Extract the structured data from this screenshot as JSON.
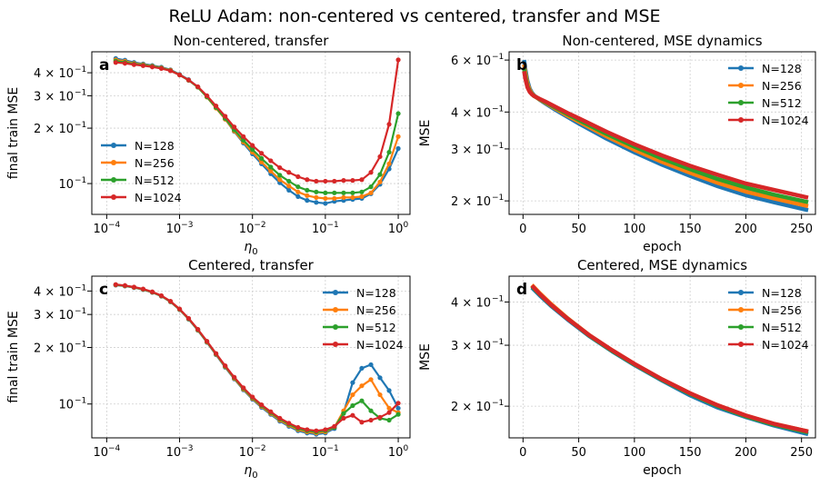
{
  "figure": {
    "title": "ReLU Adam: non-centered vs centered, transfer and MSE"
  },
  "colors": {
    "N=128": "#1f77b4",
    "N=256": "#ff7f0e",
    "N=512": "#2ca02c",
    "N=1024": "#d62728"
  },
  "chart_data": [
    {
      "panel": "a",
      "type": "line",
      "title": "Non-centered, transfer",
      "xlabel": "η0",
      "ylabel": "final train MSE",
      "xscale": "log",
      "yscale": "log",
      "xlim": [
        6.25e-05,
        1.45
      ],
      "ylim": [
        0.068,
        0.52
      ],
      "xticks": [
        {
          "v": 0.0001,
          "b": "10",
          "e": "−4"
        },
        {
          "v": 0.001,
          "b": "10",
          "e": "−3"
        },
        {
          "v": 0.01,
          "b": "10",
          "e": "−2"
        },
        {
          "v": 0.1,
          "b": "10",
          "e": "−1"
        },
        {
          "v": 1,
          "b": "10",
          "e": "0"
        }
      ],
      "yticks": [
        {
          "v": 0.1,
          "b": "10",
          "e": "−1"
        },
        {
          "v": 0.2,
          "b": "2 × 10",
          "e": "−1"
        },
        {
          "v": 0.3,
          "b": "3 × 10",
          "e": "−1"
        },
        {
          "v": 0.4,
          "b": "4 × 10",
          "e": "−1"
        }
      ],
      "grid": true,
      "markers": true,
      "legend": "center-left",
      "x": [
        0.000133,
        0.000178,
        0.000237,
        0.000316,
        0.000422,
        0.000562,
        0.00075,
        0.001,
        0.00133,
        0.00178,
        0.00237,
        0.00316,
        0.00422,
        0.00562,
        0.0075,
        0.01,
        0.0133,
        0.0178,
        0.0237,
        0.0316,
        0.0422,
        0.0562,
        0.075,
        0.1,
        0.133,
        0.178,
        0.237,
        0.316,
        0.422,
        0.562,
        0.75,
        1.0
      ],
      "series": [
        {
          "name": "N=128",
          "values": [
            0.478,
            0.468,
            0.455,
            0.447,
            0.438,
            0.429,
            0.415,
            0.392,
            0.367,
            0.335,
            0.296,
            0.258,
            0.224,
            0.192,
            0.166,
            0.145,
            0.128,
            0.113,
            0.101,
            0.092,
            0.085,
            0.081,
            0.079,
            0.078,
            0.08,
            0.081,
            0.082,
            0.083,
            0.088,
            0.099,
            0.12,
            0.155
          ]
        },
        {
          "name": "N=256",
          "values": [
            0.47,
            0.462,
            0.45,
            0.443,
            0.435,
            0.426,
            0.413,
            0.39,
            0.365,
            0.334,
            0.295,
            0.257,
            0.224,
            0.193,
            0.168,
            0.148,
            0.131,
            0.117,
            0.105,
            0.097,
            0.09,
            0.086,
            0.084,
            0.083,
            0.083,
            0.084,
            0.084,
            0.085,
            0.089,
            0.102,
            0.128,
            0.18
          ]
        },
        {
          "name": "N=512",
          "values": [
            0.463,
            0.456,
            0.447,
            0.44,
            0.433,
            0.424,
            0.411,
            0.389,
            0.364,
            0.334,
            0.296,
            0.259,
            0.226,
            0.196,
            0.172,
            0.153,
            0.137,
            0.123,
            0.111,
            0.103,
            0.096,
            0.092,
            0.09,
            0.089,
            0.089,
            0.089,
            0.089,
            0.09,
            0.096,
            0.112,
            0.148,
            0.24
          ]
        },
        {
          "name": "N=1024",
          "values": [
            0.455,
            0.45,
            0.443,
            0.437,
            0.43,
            0.422,
            0.41,
            0.389,
            0.365,
            0.336,
            0.3,
            0.264,
            0.232,
            0.203,
            0.18,
            0.161,
            0.146,
            0.133,
            0.122,
            0.115,
            0.109,
            0.105,
            0.103,
            0.103,
            0.103,
            0.104,
            0.104,
            0.105,
            0.115,
            0.14,
            0.21,
            0.47
          ]
        }
      ]
    },
    {
      "panel": "b",
      "type": "line",
      "title": "Non-centered, MSE dynamics",
      "xlabel": "epoch",
      "ylabel": "MSE",
      "xscale": "linear",
      "yscale": "log",
      "xlim": [
        -12.5,
        262.5
      ],
      "ylim": [
        0.18,
        0.64
      ],
      "xticks": [
        {
          "v": 0,
          "b": "0",
          "e": ""
        },
        {
          "v": 50,
          "b": "50",
          "e": ""
        },
        {
          "v": 100,
          "b": "100",
          "e": ""
        },
        {
          "v": 150,
          "b": "150",
          "e": ""
        },
        {
          "v": 200,
          "b": "200",
          "e": ""
        },
        {
          "v": 250,
          "b": "250",
          "e": ""
        }
      ],
      "yticks": [
        {
          "v": 0.2,
          "b": "2 × 10",
          "e": "−1"
        },
        {
          "v": 0.3,
          "b": "3 × 10",
          "e": "−1"
        },
        {
          "v": 0.4,
          "b": "4 × 10",
          "e": "−1"
        },
        {
          "v": 0.6,
          "b": "6 × 10",
          "e": "−1"
        }
      ],
      "grid": true,
      "markers": false,
      "linewidth": "thick",
      "legend": "top-right",
      "x": [
        1,
        2,
        4,
        6,
        8,
        10,
        15,
        20,
        30,
        40,
        50,
        75,
        100,
        125,
        150,
        175,
        200,
        225,
        256
      ],
      "series": [
        {
          "name": "N=128",
          "values": [
            0.6,
            0.56,
            0.51,
            0.48,
            0.465,
            0.455,
            0.44,
            0.428,
            0.405,
            0.385,
            0.366,
            0.325,
            0.292,
            0.265,
            0.243,
            0.224,
            0.209,
            0.198,
            0.186
          ]
        },
        {
          "name": "N=256",
          "values": [
            0.58,
            0.545,
            0.5,
            0.475,
            0.462,
            0.454,
            0.441,
            0.43,
            0.409,
            0.389,
            0.371,
            0.331,
            0.298,
            0.271,
            0.249,
            0.23,
            0.215,
            0.204,
            0.192
          ]
        },
        {
          "name": "N=512",
          "values": [
            0.56,
            0.53,
            0.49,
            0.47,
            0.46,
            0.453,
            0.442,
            0.432,
            0.412,
            0.393,
            0.376,
            0.337,
            0.305,
            0.278,
            0.256,
            0.237,
            0.222,
            0.21,
            0.198
          ]
        },
        {
          "name": "N=1024",
          "values": [
            0.55,
            0.52,
            0.485,
            0.468,
            0.459,
            0.453,
            0.443,
            0.434,
            0.415,
            0.397,
            0.381,
            0.343,
            0.311,
            0.285,
            0.263,
            0.245,
            0.229,
            0.218,
            0.205
          ]
        }
      ]
    },
    {
      "panel": "c",
      "type": "line",
      "title": "Centered, transfer",
      "xlabel": "η0",
      "ylabel": "final train MSE",
      "xscale": "log",
      "yscale": "log",
      "xlim": [
        6.25e-05,
        1.45
      ],
      "ylim": [
        0.066,
        0.48
      ],
      "xticks": [
        {
          "v": 0.0001,
          "b": "10",
          "e": "−4"
        },
        {
          "v": 0.001,
          "b": "10",
          "e": "−3"
        },
        {
          "v": 0.01,
          "b": "10",
          "e": "−2"
        },
        {
          "v": 0.1,
          "b": "10",
          "e": "−1"
        },
        {
          "v": 1,
          "b": "10",
          "e": "0"
        }
      ],
      "yticks": [
        {
          "v": 0.1,
          "b": "10",
          "e": "−1"
        },
        {
          "v": 0.2,
          "b": "2 × 10",
          "e": "−1"
        },
        {
          "v": 0.3,
          "b": "3 × 10",
          "e": "−1"
        },
        {
          "v": 0.4,
          "b": "4 × 10",
          "e": "−1"
        }
      ],
      "grid": true,
      "markers": true,
      "legend": "top-right",
      "x": [
        0.000133,
        0.000178,
        0.000237,
        0.000316,
        0.000422,
        0.000562,
        0.00075,
        0.001,
        0.00133,
        0.00178,
        0.00237,
        0.00316,
        0.00422,
        0.00562,
        0.0075,
        0.01,
        0.0133,
        0.0178,
        0.0237,
        0.0316,
        0.0422,
        0.0562,
        0.075,
        0.1,
        0.133,
        0.178,
        0.237,
        0.316,
        0.422,
        0.562,
        0.75,
        1.0
      ],
      "series": [
        {
          "name": "N=128",
          "values": [
            0.43,
            0.425,
            0.417,
            0.407,
            0.393,
            0.375,
            0.35,
            0.318,
            0.283,
            0.247,
            0.213,
            0.183,
            0.157,
            0.136,
            0.119,
            0.106,
            0.096,
            0.088,
            0.081,
            0.076,
            0.072,
            0.07,
            0.069,
            0.07,
            0.074,
            0.09,
            0.13,
            0.155,
            0.162,
            0.138,
            0.118,
            0.095
          ]
        },
        {
          "name": "N=256",
          "values": [
            0.431,
            0.426,
            0.418,
            0.408,
            0.394,
            0.376,
            0.351,
            0.319,
            0.284,
            0.248,
            0.214,
            0.184,
            0.158,
            0.137,
            0.12,
            0.107,
            0.097,
            0.089,
            0.082,
            0.077,
            0.073,
            0.071,
            0.07,
            0.071,
            0.075,
            0.092,
            0.112,
            0.125,
            0.135,
            0.112,
            0.095,
            0.09
          ]
        },
        {
          "name": "N=512",
          "values": [
            0.432,
            0.427,
            0.419,
            0.409,
            0.395,
            0.377,
            0.352,
            0.32,
            0.285,
            0.249,
            0.215,
            0.185,
            0.159,
            0.138,
            0.121,
            0.108,
            0.098,
            0.09,
            0.083,
            0.078,
            0.074,
            0.072,
            0.071,
            0.072,
            0.075,
            0.089,
            0.098,
            0.104,
            0.092,
            0.084,
            0.082,
            0.088
          ]
        },
        {
          "name": "N=1024",
          "values": [
            0.433,
            0.428,
            0.42,
            0.41,
            0.396,
            0.378,
            0.353,
            0.321,
            0.286,
            0.25,
            0.216,
            0.186,
            0.16,
            0.139,
            0.122,
            0.109,
            0.099,
            0.091,
            0.084,
            0.079,
            0.075,
            0.073,
            0.072,
            0.073,
            0.076,
            0.084,
            0.087,
            0.08,
            0.082,
            0.085,
            0.09,
            0.101
          ]
        }
      ]
    },
    {
      "panel": "d",
      "type": "line",
      "title": "Centered, MSE dynamics",
      "xlabel": "epoch",
      "ylabel": "MSE",
      "xscale": "linear",
      "yscale": "log",
      "xlim": [
        -12.5,
        262.5
      ],
      "ylim": [
        0.162,
        0.475
      ],
      "xticks": [
        {
          "v": 0,
          "b": "0",
          "e": ""
        },
        {
          "v": 50,
          "b": "50",
          "e": ""
        },
        {
          "v": 100,
          "b": "100",
          "e": ""
        },
        {
          "v": 150,
          "b": "150",
          "e": ""
        },
        {
          "v": 200,
          "b": "200",
          "e": ""
        },
        {
          "v": 250,
          "b": "250",
          "e": ""
        }
      ],
      "yticks": [
        {
          "v": 0.2,
          "b": "2 × 10",
          "e": "−1"
        },
        {
          "v": 0.3,
          "b": "3 × 10",
          "e": "−1"
        },
        {
          "v": 0.4,
          "b": "4 × 10",
          "e": "−1"
        }
      ],
      "grid": true,
      "markers": false,
      "linewidth": "thick",
      "legend": "top-right",
      "x": [
        8,
        15,
        25,
        40,
        60,
        80,
        100,
        125,
        150,
        175,
        200,
        225,
        256
      ],
      "series": [
        {
          "name": "N=128",
          "values": [
            0.44,
            0.418,
            0.39,
            0.356,
            0.318,
            0.288,
            0.263,
            0.237,
            0.215,
            0.198,
            0.186,
            0.176,
            0.166
          ]
        },
        {
          "name": "N=256",
          "values": [
            0.448,
            0.424,
            0.395,
            0.359,
            0.32,
            0.29,
            0.265,
            0.239,
            0.218,
            0.201,
            0.188,
            0.178,
            0.169
          ]
        },
        {
          "name": "N=512",
          "values": [
            0.444,
            0.421,
            0.392,
            0.358,
            0.319,
            0.289,
            0.264,
            0.238,
            0.217,
            0.2,
            0.187,
            0.177,
            0.168
          ]
        },
        {
          "name": "N=1024",
          "values": [
            0.446,
            0.422,
            0.393,
            0.358,
            0.32,
            0.29,
            0.265,
            0.239,
            0.218,
            0.201,
            0.188,
            0.178,
            0.169
          ]
        }
      ]
    }
  ]
}
